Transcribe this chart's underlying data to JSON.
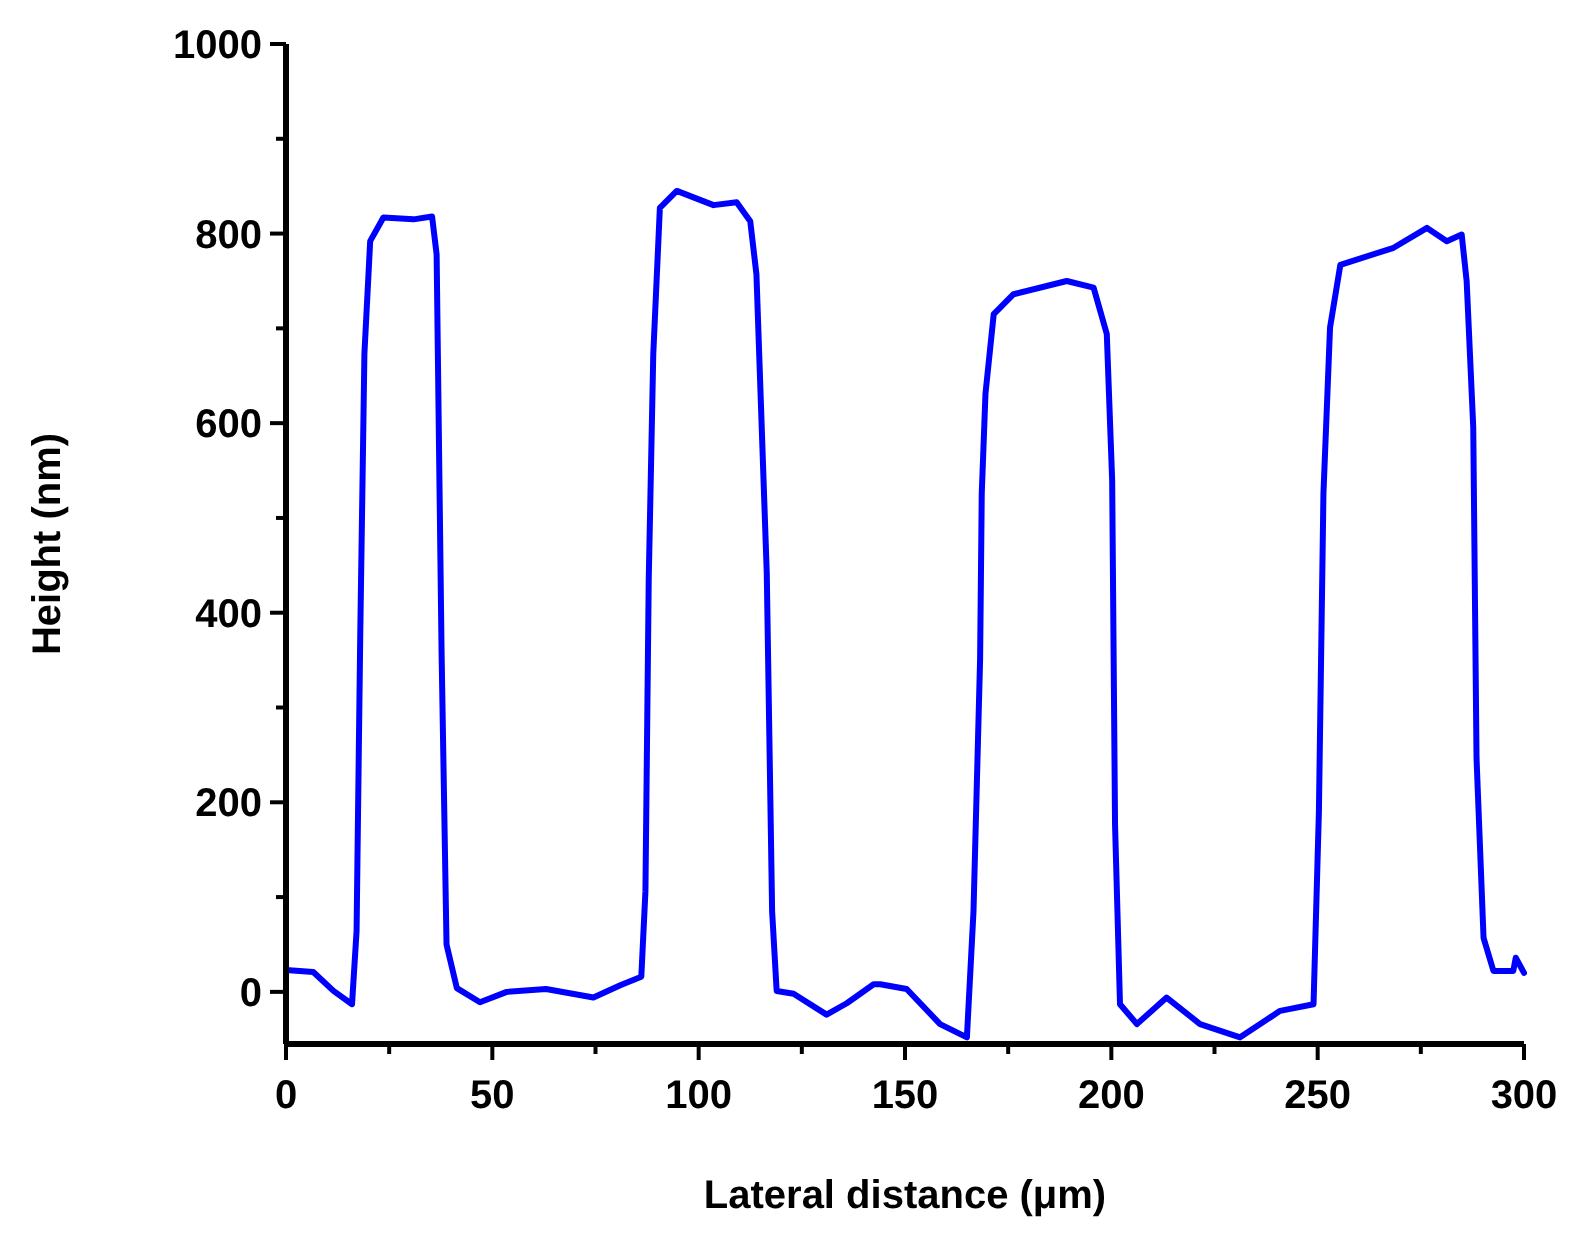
{
  "chart_data": {
    "type": "line",
    "xlabel": "Lateral distance (μm)",
    "ylabel": "Height (nm)",
    "xlim": [
      0,
      300
    ],
    "ylim": [
      -55,
      1000
    ],
    "xticks": [
      0,
      {
        "value": 25,
        "label": null
      },
      50,
      {
        "value": 75,
        "label": null
      },
      100,
      {
        "value": 125,
        "label": null
      },
      150,
      {
        "value": 175,
        "label": null
      },
      200,
      {
        "value": 225,
        "label": null
      },
      250,
      {
        "value": 275,
        "label": null
      },
      300
    ],
    "yticks": [
      0,
      {
        "value": 100,
        "label": null
      },
      200,
      {
        "value": 300,
        "label": null
      },
      400,
      {
        "value": 500,
        "label": null
      },
      600,
      {
        "value": 700,
        "label": null
      },
      800,
      {
        "value": 900,
        "label": null
      },
      1000
    ],
    "marker": "none",
    "line_style": "solid",
    "series": [
      {
        "color": "#0000ff",
        "x": [
          0,
          6.6,
          11.5,
          16,
          17.1,
          18,
          19,
          20.4,
          23.6,
          30.9,
          35.4,
          36.5,
          37.7,
          38.9,
          41.4,
          47,
          53.5,
          63,
          74.5,
          81,
          86.1,
          87.1,
          87.9,
          89,
          90.6,
          94.7,
          103.6,
          109.2,
          112.5,
          114,
          116.5,
          117.8,
          118.9,
          123,
          131,
          135.9,
          142.4,
          144,
          150.4,
          158.5,
          165,
          166.6,
          168.2,
          168.6,
          169.5,
          171.5,
          176.3,
          189.2,
          195.7,
          198.9,
          200.2,
          200.9,
          202.1,
          206.2,
          213.4,
          221.5,
          231.2,
          240.9,
          249,
          250.3,
          251.4,
          253,
          255.5,
          268.4,
          276.5,
          281.3,
          284.9,
          286.1,
          287.7,
          288.5,
          290.2,
          292.6,
          297.4,
          298,
          300
        ],
        "values": [
          23,
          21,
          1,
          -13,
          64,
          379,
          673,
          792,
          817,
          815,
          818,
          778,
          358,
          50,
          4,
          -11,
          0,
          3,
          -6,
          7,
          16,
          106,
          435,
          673,
          827,
          845,
          830,
          833,
          813,
          757,
          442,
          85,
          1,
          -2,
          -24,
          -12,
          8,
          8,
          3,
          -34,
          -48,
          85,
          351,
          526,
          631,
          715,
          736,
          750,
          743,
          694,
          540,
          176,
          -13,
          -34,
          -6,
          -34,
          -48,
          -20,
          -13,
          190,
          526,
          701,
          767,
          785,
          806,
          792,
          799,
          750,
          596,
          246,
          57,
          22,
          22,
          36,
          20
        ]
      }
    ]
  }
}
